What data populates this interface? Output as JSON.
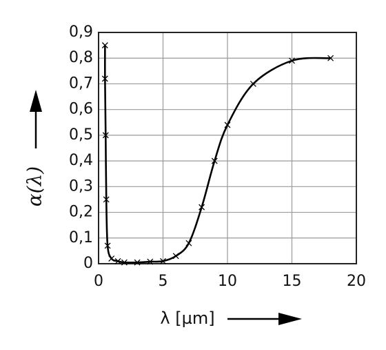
{
  "chart_data": {
    "type": "line",
    "y_label": "α(λ)",
    "x_label": "λ [µm]",
    "x": [
      0.5,
      0.5,
      0.55,
      0.6,
      0.7,
      1,
      1.5,
      2,
      3,
      4,
      5,
      6,
      7,
      8,
      9,
      10,
      12,
      15,
      18
    ],
    "values": [
      0.85,
      0.72,
      0.5,
      0.25,
      0.07,
      0.02,
      0.01,
      0.005,
      0.005,
      0.008,
      0.01,
      0.03,
      0.08,
      0.22,
      0.4,
      0.54,
      0.7,
      0.79,
      0.8
    ],
    "color": "#000000",
    "xlim": [
      0,
      20
    ],
    "xticks": [
      0,
      5,
      10,
      15,
      20
    ],
    "ylim": [
      0,
      0.9
    ],
    "yticks": [
      0,
      {
        "value": 0.1,
        "label": "0,1"
      },
      {
        "value": 0.2,
        "label": "0,2"
      },
      {
        "value": 0.3,
        "label": "0,3"
      },
      {
        "value": 0.4,
        "label": "0,4"
      },
      {
        "value": 0.5,
        "label": "0,5"
      },
      {
        "value": 0.6,
        "label": "0,6"
      },
      {
        "value": 0.7,
        "label": "0,7"
      },
      {
        "value": 0.8,
        "label": "0,8"
      },
      {
        "value": 0.9,
        "label": "0,9"
      }
    ],
    "grid": true
  }
}
